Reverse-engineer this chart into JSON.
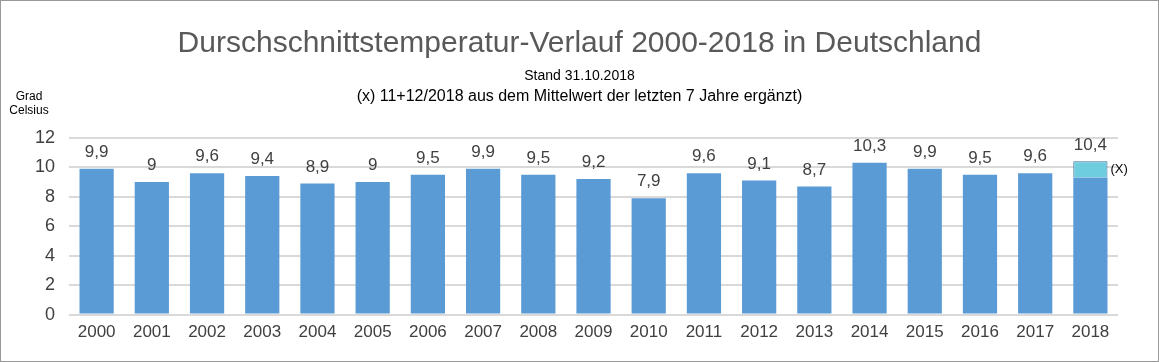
{
  "chart_data": {
    "type": "bar",
    "title": "Durschschnittstemperatur-Verlauf 2000-2018 in Deutschland",
    "subtitle": "Stand 31.10.2018",
    "ylabel": "Grad Celsius",
    "categories": [
      "2000",
      "2001",
      "2002",
      "2003",
      "2004",
      "2005",
      "2006",
      "2007",
      "2008",
      "2009",
      "2010",
      "2011",
      "2012",
      "2013",
      "2014",
      "2015",
      "2016",
      "2017",
      "2018"
    ],
    "stacked": true,
    "series": [
      {
        "color": "#5b9bd5",
        "values": [
          9.9,
          9,
          9.6,
          9.4,
          8.9,
          9,
          9.5,
          9.9,
          9.5,
          9.2,
          7.9,
          9.6,
          9.1,
          8.7,
          10.3,
          9.9,
          9.5,
          9.6,
          9.3
        ],
        "value_labels": [
          "9,9",
          "9",
          "9,6",
          "9,4",
          "8,9",
          "9",
          "9,5",
          "9,9",
          "9,5",
          "9,2",
          "7,9",
          "9,6",
          "9,1",
          "8,7",
          "10,3",
          "9,9",
          "9,5",
          "9,6",
          null
        ]
      },
      {
        "color": "#6fcde0",
        "values": [
          null,
          null,
          null,
          null,
          null,
          null,
          null,
          null,
          null,
          null,
          null,
          null,
          null,
          null,
          null,
          null,
          null,
          null,
          1.1
        ]
      }
    ],
    "totals": [
      null,
      null,
      null,
      null,
      null,
      null,
      null,
      null,
      null,
      null,
      null,
      null,
      null,
      null,
      null,
      null,
      null,
      null,
      "10,4"
    ],
    "annotations": [
      "(x) 11+12/2018 aus dem Mittelwert der letzten 7 Jahre ergänzt)",
      "(X)"
    ],
    "ylim": [
      0,
      12
    ],
    "yticks": [
      0,
      2,
      4,
      6,
      8,
      10,
      12
    ],
    "grid": "y",
    "legend": false
  }
}
